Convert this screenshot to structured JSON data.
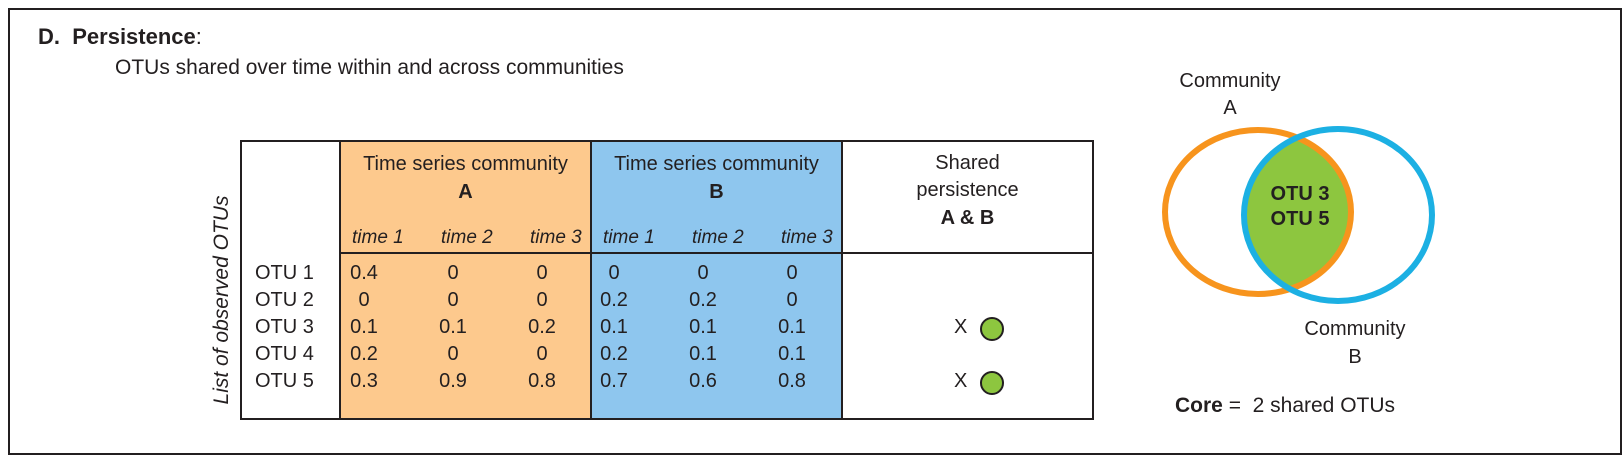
{
  "section": {
    "letter": "D.",
    "title": "Persistence",
    "title_suffix": ":",
    "subtitle": "OTUs shared over time within and across communities"
  },
  "table": {
    "y_axis_label": "List of observed OTUs",
    "group_a": {
      "header_line1": "Time series community",
      "header_line2": "A",
      "color": "#fdc98d"
    },
    "group_b": {
      "header_line1": "Time series community",
      "header_line2": "B",
      "color": "#8ec6ee"
    },
    "shared": {
      "header_line1": "Shared",
      "header_line2": "persistence",
      "header_line3": "A & B"
    },
    "time_labels": [
      "time 1",
      "time 2",
      "time 3"
    ],
    "rows": [
      {
        "otu": "OTU 1",
        "a": [
          "0.4",
          "0",
          "0"
        ],
        "b": [
          "0",
          "0",
          "0"
        ],
        "shared_mark": ""
      },
      {
        "otu": "OTU 2",
        "a": [
          "0",
          "0",
          "0"
        ],
        "b": [
          "0.2",
          "0.2",
          "0"
        ],
        "shared_mark": ""
      },
      {
        "otu": "OTU 3",
        "a": [
          "0.1",
          "0.1",
          "0.2"
        ],
        "b": [
          "0.1",
          "0.1",
          "0.1"
        ],
        "shared_mark": "X"
      },
      {
        "otu": "OTU 4",
        "a": [
          "0.2",
          "0",
          "0"
        ],
        "b": [
          "0.2",
          "0.1",
          "0.1"
        ],
        "shared_mark": ""
      },
      {
        "otu": "OTU 5",
        "a": [
          "0.3",
          "0.9",
          "0.8"
        ],
        "b": [
          "0.7",
          "0.6",
          "0.8"
        ],
        "shared_mark": "X"
      }
    ],
    "shared_dot_color": "#8dc63f"
  },
  "venn": {
    "label_a_line1": "Community",
    "label_a_line2": "A",
    "label_b_line1": "Community",
    "label_b_line2": "B",
    "intersection_line1": "OTU 3",
    "intersection_line2": "OTU 5",
    "color_a": "#f7941d",
    "color_b": "#1cb0e3",
    "color_intersection": "#8dc63f"
  },
  "core": {
    "label": "Core",
    "equals": "=",
    "value": "2 shared OTUs"
  }
}
